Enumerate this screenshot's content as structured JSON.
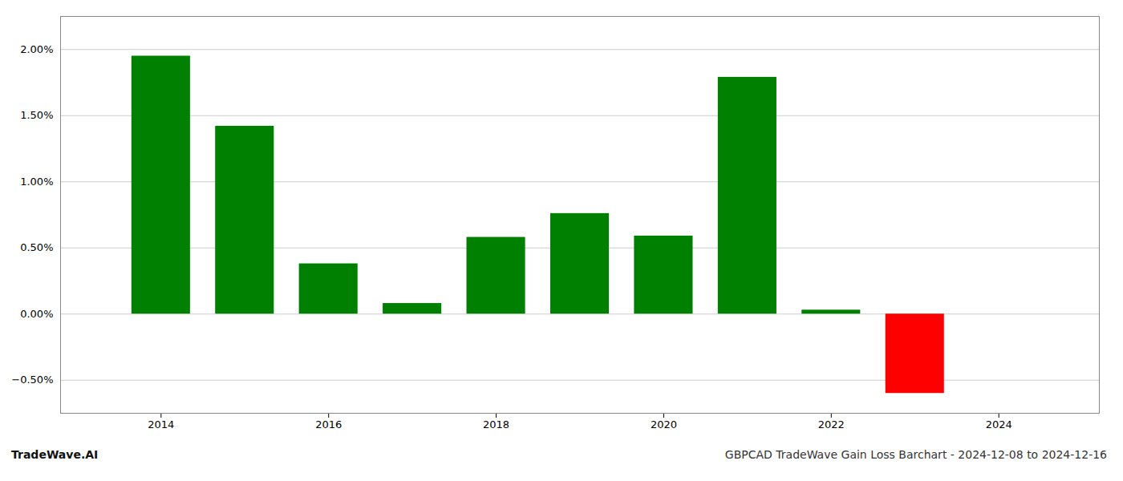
{
  "chart_data": {
    "type": "bar",
    "title": "GBPCAD TradeWave Gain Loss Barchart - 2024-12-08 to 2024-12-16",
    "annotations": [
      "TradeWave.AI"
    ],
    "x": [
      2014,
      2015,
      2016,
      2017,
      2018,
      2019,
      2020,
      2021,
      2022,
      2023
    ],
    "values": [
      1.95,
      1.42,
      0.38,
      0.08,
      0.58,
      0.76,
      0.59,
      1.79,
      0.03,
      -0.6
    ],
    "colors": [
      "#008000",
      "#008000",
      "#008000",
      "#008000",
      "#008000",
      "#008000",
      "#008000",
      "#008000",
      "#008000",
      "#ff0000"
    ],
    "xlim": [
      2012.8,
      2025.2
    ],
    "xticks": [
      2014,
      2016,
      2018,
      2020,
      2022,
      2024
    ],
    "ylim": [
      -0.75,
      2.25
    ],
    "yticks": [
      {
        "value": -0.5,
        "label": "−0.50%"
      },
      {
        "value": 0.0,
        "label": "0.00%"
      },
      {
        "value": 0.5,
        "label": "0.50%"
      },
      {
        "value": 1.0,
        "label": "1.00%"
      },
      {
        "value": 1.5,
        "label": "1.50%"
      },
      {
        "value": 2.0,
        "label": "2.00%"
      }
    ],
    "grid": true
  }
}
